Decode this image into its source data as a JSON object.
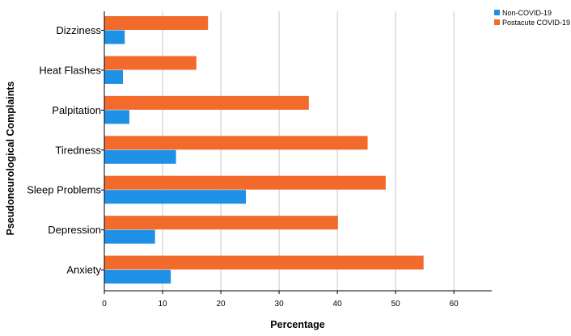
{
  "chart_data": {
    "type": "bar",
    "orientation": "horizontal",
    "categories": [
      "Dizziness",
      "Heat Flashes",
      "Palpitation",
      "Tiredness",
      "Sleep Problems",
      "Depression",
      "Anxiety"
    ],
    "series": [
      {
        "name": "Non-COVID-19",
        "color": "#1e90e6",
        "values": [
          3.5,
          3.2,
          4.3,
          12.3,
          24.3,
          8.7,
          11.4
        ]
      },
      {
        "name": "Postacute COVID-19",
        "color": "#f26a2c",
        "values": [
          17.8,
          15.8,
          35.1,
          45.2,
          48.3,
          40.1,
          54.8
        ]
      }
    ],
    "title": "",
    "xlabel": "Percentage",
    "ylabel": "Pseudoneurological Complaints",
    "xlim": [
      0,
      66.5
    ],
    "xticks": [
      0,
      10,
      20,
      30,
      40,
      50,
      60
    ],
    "grid": true,
    "legend_position": "top-right"
  }
}
